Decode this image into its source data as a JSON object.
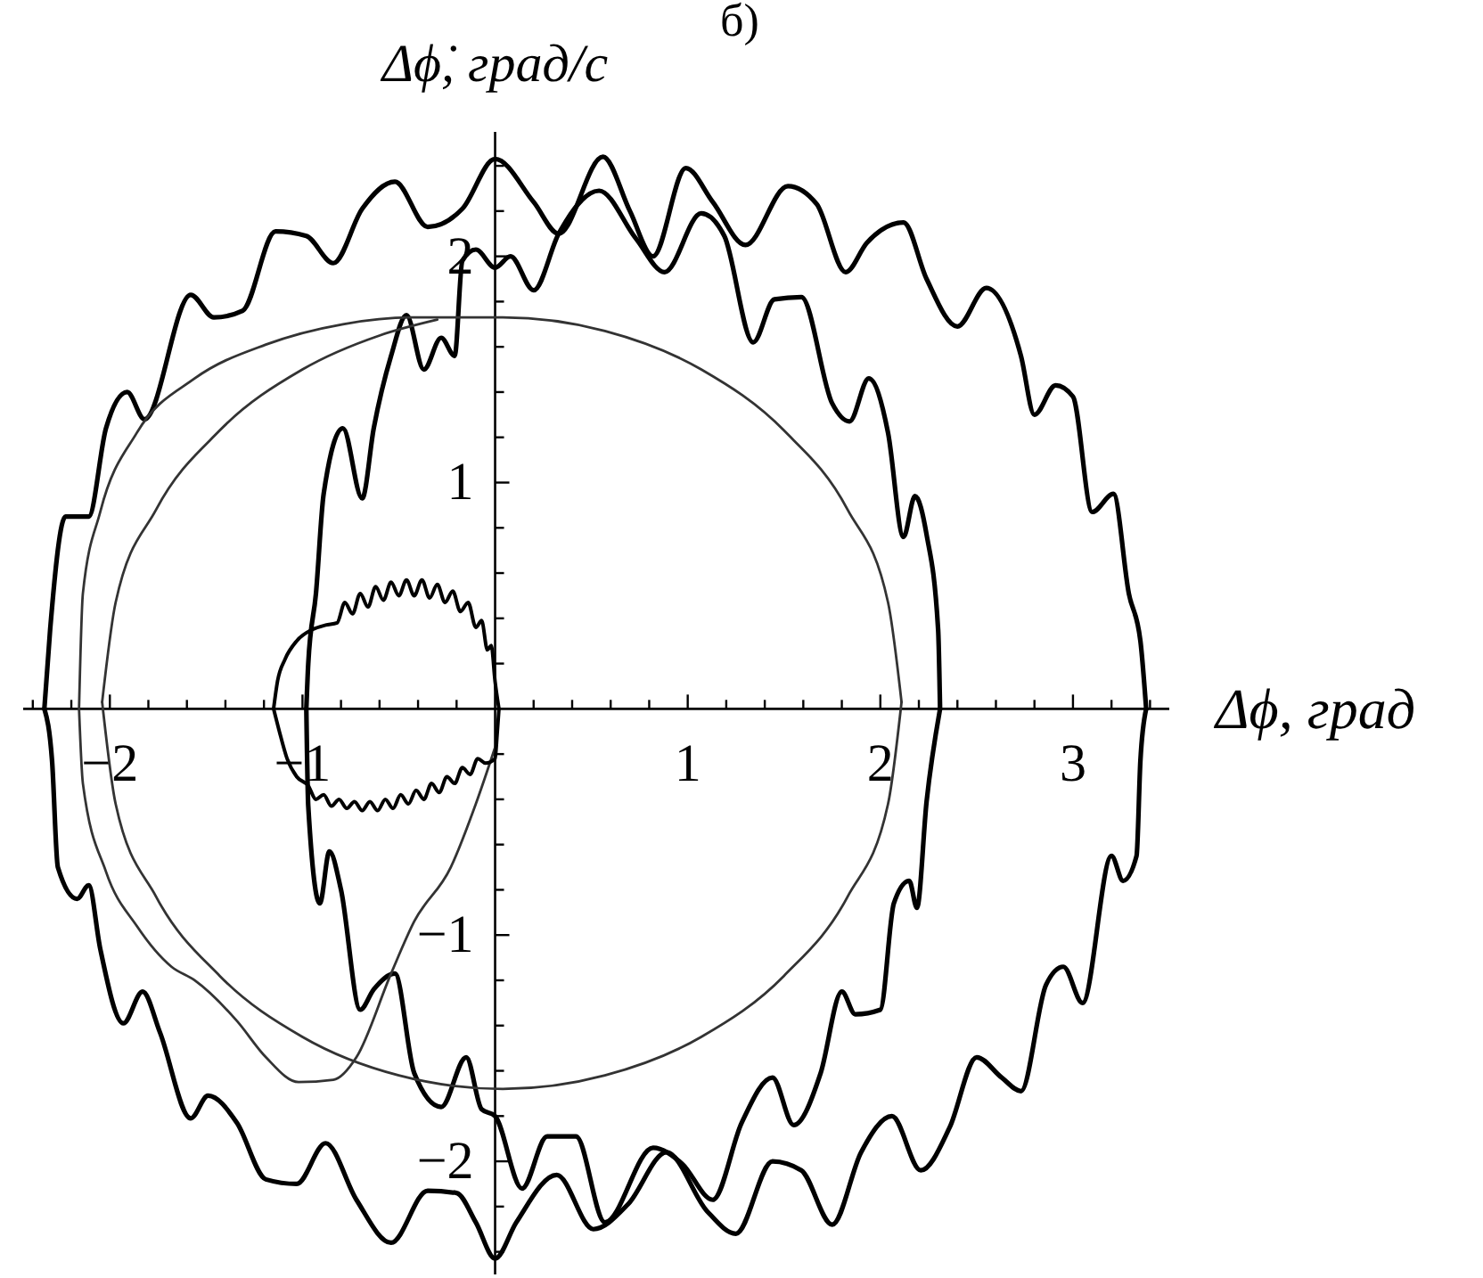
{
  "chart_data": {
    "type": "line",
    "title": "б)",
    "xlabel": "Δϕ, град",
    "ylabel": "Δϕ̇, град/с",
    "xlim": [
      -2.45,
      3.5
    ],
    "ylim": [
      -2.5,
      2.55
    ],
    "xticks": [
      {
        "value": -2.4,
        "label": null
      },
      {
        "value": -2.2,
        "label": null
      },
      {
        "value": -2,
        "label": "−2"
      },
      {
        "value": -1.8,
        "label": null
      },
      {
        "value": -1.6,
        "label": null
      },
      {
        "value": -1.4,
        "label": null
      },
      {
        "value": -1.2,
        "label": null
      },
      {
        "value": -1,
        "label": "−1"
      },
      {
        "value": -0.8,
        "label": null
      },
      {
        "value": -0.6,
        "label": null
      },
      {
        "value": -0.4,
        "label": null
      },
      {
        "value": -0.2,
        "label": null
      },
      {
        "value": 0.2,
        "label": null
      },
      {
        "value": 0.4,
        "label": null
      },
      {
        "value": 0.6,
        "label": null
      },
      {
        "value": 0.8,
        "label": null
      },
      1,
      {
        "value": 1.2,
        "label": null
      },
      {
        "value": 1.4,
        "label": null
      },
      {
        "value": 1.6,
        "label": null
      },
      {
        "value": 1.8,
        "label": null
      },
      2,
      {
        "value": 2.2,
        "label": null
      },
      {
        "value": 2.4,
        "label": null
      },
      {
        "value": 2.6,
        "label": null
      },
      {
        "value": 2.8,
        "label": null
      },
      3,
      {
        "value": 3.2,
        "label": null
      },
      {
        "value": 3.4,
        "label": null
      }
    ],
    "yticks": [
      {
        "value": -2.4,
        "label": null
      },
      {
        "value": -2.2,
        "label": null
      },
      {
        "value": -2,
        "label": "−2"
      },
      {
        "value": -1.8,
        "label": null
      },
      {
        "value": -1.6,
        "label": null
      },
      {
        "value": -1.4,
        "label": null
      },
      {
        "value": -1.2,
        "label": null
      },
      {
        "value": -1,
        "label": "−1"
      },
      {
        "value": -0.8,
        "label": null
      },
      {
        "value": -0.6,
        "label": null
      },
      {
        "value": -0.4,
        "label": null
      },
      {
        "value": -0.2,
        "label": null
      },
      {
        "value": 0.2,
        "label": null
      },
      {
        "value": 0.4,
        "label": null
      },
      {
        "value": 0.6,
        "label": null
      },
      {
        "value": 0.8,
        "label": null
      },
      1,
      {
        "value": 1.2,
        "label": null
      },
      {
        "value": 1.4,
        "label": null
      },
      {
        "value": 1.6,
        "label": null
      },
      {
        "value": 1.8,
        "label": null
      },
      2,
      {
        "value": 2.2,
        "label": null
      },
      {
        "value": 2.4,
        "label": null
      }
    ],
    "marker": "none",
    "series": [
      {
        "color": "#000000",
        "x": [
          -2.34,
          -2.31,
          -2.23,
          -2.11,
          -2.02,
          -1.91,
          -1.82,
          -1.58,
          -1.46,
          -1.31,
          -1.14,
          -0.98,
          -0.84,
          -0.69,
          -0.52,
          -0.35,
          -0.17,
          0,
          0.2,
          0.33,
          0.56,
          0.7,
          0.82,
          0.99,
          1.13,
          1.3,
          1.52,
          1.67,
          1.82,
          1.93,
          2.12,
          2.24,
          2.4,
          2.55,
          2.73,
          2.8,
          2.91,
          3.0,
          3.1,
          3.21,
          3.29,
          3.35,
          3.38
        ],
        "values": [
          0,
          0.35,
          0.85,
          0.85,
          1.24,
          1.4,
          1.28,
          1.83,
          1.73,
          1.76,
          2.11,
          2.09,
          1.97,
          2.21,
          2.33,
          2.13,
          2.21,
          2.43,
          2.24,
          2.1,
          2.44,
          2.2,
          2.0,
          2.39,
          2.24,
          2.05,
          2.31,
          2.23,
          1.93,
          2.06,
          2.15,
          1.9,
          1.69,
          1.86,
          1.56,
          1.3,
          1.43,
          1.38,
          0.87,
          0.95,
          0.51,
          0.3,
          0
        ]
      },
      {
        "color": "#000000",
        "x": [
          -2.34,
          -2.3,
          -2.27,
          -2.17,
          -2.11,
          -2.05,
          -1.93,
          -1.83,
          -1.74,
          -1.58,
          -1.49,
          -1.34,
          -1.19,
          -1.03,
          -0.88,
          -0.72,
          -0.54,
          -0.35,
          -0.2,
          -0.1,
          0,
          0.11,
          0.32,
          0.51,
          0.69,
          0.89,
          1.1,
          1.25,
          1.44,
          1.59,
          1.75,
          1.9,
          2.06,
          2.21,
          2.36,
          2.5,
          2.63,
          2.73,
          2.86,
          2.95,
          3.05,
          3.2,
          3.26,
          3.33,
          3.35,
          3.38
        ],
        "values": [
          0,
          -0.23,
          -0.7,
          -0.84,
          -0.78,
          -1.06,
          -1.39,
          -1.25,
          -1.43,
          -1.81,
          -1.71,
          -1.83,
          -2.08,
          -2.1,
          -1.92,
          -2.17,
          -2.36,
          -2.13,
          -2.14,
          -2.27,
          -2.43,
          -2.27,
          -2.06,
          -2.3,
          -2.19,
          -1.96,
          -2.22,
          -2.32,
          -2.0,
          -2.04,
          -2.28,
          -1.96,
          -1.8,
          -2.04,
          -1.85,
          -1.54,
          -1.63,
          -1.69,
          -1.22,
          -1.14,
          -1.3,
          -0.65,
          -0.76,
          -0.65,
          -0.23,
          0
        ]
      },
      {
        "color": "#000000",
        "x": [
          -0.98,
          -0.97,
          -0.91,
          -0.86,
          -0.8,
          -0.7,
          -0.63,
          -0.52,
          -0.42,
          -0.28,
          -0.15,
          -0.07,
          0,
          0.14,
          0.27,
          0.42,
          0.57,
          0.82,
          0.97,
          1.13,
          1.28,
          1.44,
          1.55,
          1.69,
          1.8,
          1.87,
          2.0,
          2.07,
          2.15,
          2.19,
          2.24,
          2.31
        ],
        "values": [
          0,
          -0.43,
          -0.86,
          -0.63,
          -0.8,
          -1.33,
          -1.24,
          -1.17,
          -1.61,
          -1.76,
          -1.54,
          -1.77,
          -1.8,
          -2.12,
          -1.89,
          -1.89,
          -2.27,
          -1.94,
          -2.01,
          -2.17,
          -1.83,
          -1.63,
          -1.84,
          -1.61,
          -1.25,
          -1.35,
          -1.33,
          -0.86,
          -0.76,
          -0.88,
          -0.41,
          0
        ]
      },
      {
        "color": "#000000",
        "x": [
          -0.98,
          -0.97,
          -0.93,
          -0.89,
          -0.79,
          -0.69,
          -0.63,
          -0.54,
          -0.46,
          -0.37,
          -0.28,
          -0.21,
          -0.17,
          -0.1,
          0,
          0.08,
          0.2,
          0.33,
          0.54,
          0.73,
          0.88,
          1.07,
          1.19,
          1.34,
          1.45,
          1.59,
          1.75,
          1.84,
          1.94,
          2.04,
          2.12,
          2.18,
          2.24,
          2.3,
          2.31
        ],
        "values": [
          0,
          0.2,
          0.51,
          0.95,
          1.24,
          0.93,
          1.24,
          1.56,
          1.74,
          1.5,
          1.64,
          1.56,
          1.98,
          2.03,
          1.95,
          2.0,
          1.85,
          2.1,
          2.29,
          2.08,
          1.93,
          2.19,
          2.09,
          1.62,
          1.81,
          1.82,
          1.35,
          1.27,
          1.46,
          1.22,
          0.76,
          0.94,
          0.77,
          0.35,
          0
        ]
      },
      {
        "color": "#333333",
        "x": [
          -2.16,
          -2.14,
          -2.02,
          -1.86,
          -1.68,
          -1.56,
          -1.34,
          -1.19,
          -1.02,
          -0.84,
          -0.72,
          -0.54,
          -0.42,
          -0.23,
          -0.1,
          0
        ],
        "values": [
          0,
          -0.33,
          -0.72,
          -0.96,
          -1.14,
          -1.2,
          -1.38,
          -1.54,
          -1.65,
          -1.64,
          -1.54,
          -1.17,
          -0.94,
          -0.7,
          -0.42,
          -0.17
        ]
      },
      {
        "color": "#333333",
        "x": [
          -2.16,
          -2.14,
          -2.05,
          -1.86,
          -1.56,
          -1.19,
          -0.79,
          -0.44,
          0.04,
          0.57,
          1.07,
          1.5,
          1.83,
          2.04,
          2.11
        ],
        "values": [
          0,
          0.51,
          0.87,
          1.22,
          1.46,
          1.61,
          1.7,
          1.73,
          1.73,
          1.67,
          1.5,
          1.23,
          0.88,
          0.47,
          0.03
        ]
      },
      {
        "color": "#333333",
        "x": [
          -2.04,
          -1.97,
          -1.76,
          -1.43,
          -1.0,
          -0.5,
          0.04,
          0.57,
          1.07,
          1.5,
          1.83,
          2.04,
          2.11
        ],
        "values": [
          0.03,
          -0.42,
          -0.83,
          -1.18,
          -1.45,
          -1.62,
          -1.68,
          -1.62,
          -1.45,
          -1.18,
          -0.83,
          -0.42,
          0.03
        ]
      },
      {
        "color": "#333333",
        "x": [
          -2.04,
          -1.97,
          -1.76,
          -1.43,
          -1.0,
          -0.6,
          -0.3
        ],
        "values": [
          0.03,
          0.47,
          0.88,
          1.23,
          1.5,
          1.65,
          1.72
        ]
      },
      {
        "color": "#000000",
        "x": [
          -1.15,
          -1.13,
          -1.09,
          -1.03,
          -0.95,
          -0.88,
          -0.82,
          -0.78,
          -0.74,
          -0.7,
          -0.66,
          -0.62,
          -0.58,
          -0.54,
          -0.5,
          -0.46,
          -0.42,
          -0.38,
          -0.34,
          -0.3,
          -0.26,
          -0.22,
          -0.18,
          -0.14,
          -0.1,
          -0.07,
          -0.04,
          -0.02,
          0,
          0.02
        ],
        "values": [
          0,
          0.12,
          0.22,
          0.3,
          0.35,
          0.37,
          0.38,
          0.47,
          0.42,
          0.51,
          0.45,
          0.54,
          0.48,
          0.56,
          0.5,
          0.57,
          0.5,
          0.57,
          0.49,
          0.55,
          0.47,
          0.52,
          0.43,
          0.47,
          0.36,
          0.39,
          0.26,
          0.28,
          0.12,
          0
        ]
      },
      {
        "color": "#000000",
        "x": [
          -1.15,
          -1.12,
          -1.08,
          -1.03,
          -0.97,
          -0.93,
          -0.89,
          -0.85,
          -0.81,
          -0.77,
          -0.73,
          -0.69,
          -0.65,
          -0.61,
          -0.57,
          -0.53,
          -0.49,
          -0.45,
          -0.41,
          -0.37,
          -0.33,
          -0.29,
          -0.25,
          -0.21,
          -0.17,
          -0.13,
          -0.09,
          -0.05,
          0,
          0.01,
          0.02
        ],
        "values": [
          0,
          -0.1,
          -0.22,
          -0.3,
          -0.34,
          -0.4,
          -0.38,
          -0.43,
          -0.4,
          -0.44,
          -0.41,
          -0.45,
          -0.41,
          -0.45,
          -0.4,
          -0.44,
          -0.38,
          -0.42,
          -0.36,
          -0.4,
          -0.33,
          -0.37,
          -0.3,
          -0.33,
          -0.26,
          -0.29,
          -0.22,
          -0.24,
          -0.22,
          -0.12,
          0
        ]
      }
    ]
  }
}
